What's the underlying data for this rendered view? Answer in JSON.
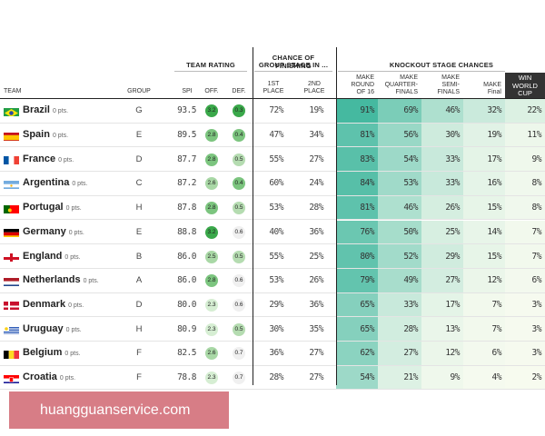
{
  "headers": {
    "team_rating": "TEAM RATING",
    "chance_line1": "CHANCE OF FINISHING",
    "chance_line2": "GROUP STAGE IN ...",
    "knockout": "KNOCKOUT STAGE CHANCES",
    "team": "TEAM",
    "group": "GROUP",
    "spi": "SPI",
    "off": "OFF.",
    "def": "DEF.",
    "first": [
      "1ST",
      "PLACE"
    ],
    "second": [
      "2ND",
      "PLACE"
    ],
    "r16": [
      "MAKE",
      "ROUND",
      "OF 16"
    ],
    "qf": [
      "MAKE",
      "QUARTER-",
      "FINALS"
    ],
    "sf": [
      "MAKE",
      "SEMI-",
      "FINALS"
    ],
    "final": [
      "MAKE",
      "Final"
    ],
    "win": [
      "WIN",
      "WORLD",
      "CUP"
    ]
  },
  "rows": [
    {
      "team": "Brazil",
      "pts": "0 pts.",
      "flag": "brazil-flag-icon",
      "group": "G",
      "spi": "93.5",
      "off": "3.2",
      "def": "0.3",
      "first": "72%",
      "second": "19%",
      "r16": "91%",
      "qf": "69%",
      "sf": "46%",
      "final": "32%",
      "win": "22%"
    },
    {
      "team": "Spain",
      "pts": "0 pts.",
      "flag": "spain-flag-icon",
      "group": "E",
      "spi": "89.5",
      "off": "2.8",
      "def": "0.4",
      "first": "47%",
      "second": "34%",
      "r16": "81%",
      "qf": "56%",
      "sf": "30%",
      "final": "19%",
      "win": "11%"
    },
    {
      "team": "France",
      "pts": "0 pts.",
      "flag": "france-flag-icon",
      "group": "D",
      "spi": "87.7",
      "off": "2.8",
      "def": "0.5",
      "first": "55%",
      "second": "27%",
      "r16": "83%",
      "qf": "54%",
      "sf": "33%",
      "final": "17%",
      "win": "9%"
    },
    {
      "team": "Argentina",
      "pts": "0 pts.",
      "flag": "argentina-flag-icon",
      "group": "C",
      "spi": "87.2",
      "off": "2.6",
      "def": "0.4",
      "first": "60%",
      "second": "24%",
      "r16": "84%",
      "qf": "53%",
      "sf": "33%",
      "final": "16%",
      "win": "8%"
    },
    {
      "team": "Portugal",
      "pts": "0 pts.",
      "flag": "portugal-flag-icon",
      "group": "H",
      "spi": "87.8",
      "off": "2.8",
      "def": "0.5",
      "first": "53%",
      "second": "28%",
      "r16": "81%",
      "qf": "46%",
      "sf": "26%",
      "final": "15%",
      "win": "8%"
    },
    {
      "team": "Germany",
      "pts": "0 pts.",
      "flag": "germany-flag-icon",
      "group": "E",
      "spi": "88.8",
      "off": "3.2",
      "def": "0.6",
      "first": "40%",
      "second": "36%",
      "r16": "76%",
      "qf": "50%",
      "sf": "25%",
      "final": "14%",
      "win": "7%"
    },
    {
      "team": "England",
      "pts": "0 pts.",
      "flag": "england-flag-icon",
      "group": "B",
      "spi": "86.0",
      "off": "2.5",
      "def": "0.5",
      "first": "55%",
      "second": "25%",
      "r16": "80%",
      "qf": "52%",
      "sf": "29%",
      "final": "15%",
      "win": "7%"
    },
    {
      "team": "Netherlands",
      "pts": "0 pts.",
      "flag": "netherlands-flag-icon",
      "group": "A",
      "spi": "86.0",
      "off": "2.8",
      "def": "0.6",
      "first": "53%",
      "second": "26%",
      "r16": "79%",
      "qf": "49%",
      "sf": "27%",
      "final": "12%",
      "win": "6%"
    },
    {
      "team": "Denmark",
      "pts": "0 pts.",
      "flag": "denmark-flag-icon",
      "group": "D",
      "spi": "80.0",
      "off": "2.3",
      "def": "0.6",
      "first": "29%",
      "second": "36%",
      "r16": "65%",
      "qf": "33%",
      "sf": "17%",
      "final": "7%",
      "win": "3%"
    },
    {
      "team": "Uruguay",
      "pts": "0 pts.",
      "flag": "uruguay-flag-icon",
      "group": "H",
      "spi": "80.9",
      "off": "2.3",
      "def": "0.5",
      "first": "30%",
      "second": "35%",
      "r16": "65%",
      "qf": "28%",
      "sf": "13%",
      "final": "7%",
      "win": "3%"
    },
    {
      "team": "Belgium",
      "pts": "0 pts.",
      "flag": "belgium-flag-icon",
      "group": "F",
      "spi": "82.5",
      "off": "2.6",
      "def": "0.7",
      "first": "36%",
      "second": "27%",
      "r16": "62%",
      "qf": "27%",
      "sf": "12%",
      "final": "6%",
      "win": "3%"
    },
    {
      "team": "Croatia",
      "pts": "0 pts.",
      "flag": "croatia-flag-icon",
      "group": "F",
      "spi": "78.8",
      "off": "2.3",
      "def": "0.7",
      "first": "28%",
      "second": "27%",
      "r16": "54%",
      "qf": "21%",
      "sf": "9%",
      "final": "4%",
      "win": "2%"
    }
  ],
  "watermark": "huangguanservice.com"
}
